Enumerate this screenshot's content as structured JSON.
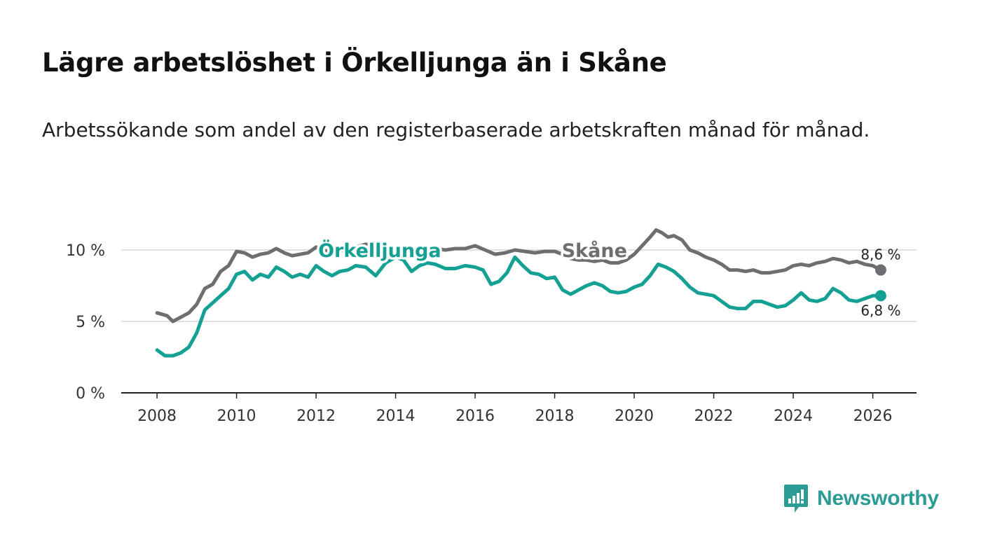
{
  "title": "Lägre arbetslöshet i Örkelljunga än i Skåne",
  "subtitle": "Arbetssökande som andel av den registerbaserade arbetskraften månad för månad.",
  "brand": {
    "name": "Newsworthy",
    "color": "#2b9b96"
  },
  "chart_data": {
    "type": "line",
    "title": "Lägre arbetslöshet i Örkelljunga än i Skåne",
    "subtitle": "Arbetssökande som andel av den registerbaserade arbetskraften månad för månad.",
    "xlabel": "",
    "ylabel": "",
    "xlim": [
      2007.1,
      2027.1
    ],
    "ylim": [
      0,
      10
    ],
    "x_ticks": [
      2008,
      2010,
      2012,
      2014,
      2016,
      2018,
      2020,
      2022,
      2024,
      2026
    ],
    "x_tick_labels": [
      "2008",
      "2010",
      "2012",
      "2014",
      "2016",
      "2018",
      "2020",
      "2022",
      "2024",
      "2026"
    ],
    "y_ticks": [
      0,
      5,
      10
    ],
    "y_tick_labels": [
      "0 %",
      "5 %",
      "10 %"
    ],
    "grid": "horizontal",
    "series": [
      {
        "name": "Skåne",
        "color": "#6e6d72",
        "end_label": "8,6 %",
        "x": [
          2008.0,
          2008.25,
          2008.4,
          2008.6,
          2008.8,
          2009.0,
          2009.2,
          2009.4,
          2009.6,
          2009.8,
          2010.0,
          2010.2,
          2010.4,
          2010.6,
          2010.8,
          2011.0,
          2011.2,
          2011.4,
          2011.6,
          2011.8,
          2012.0,
          2012.2,
          2012.4,
          2012.6,
          2012.8,
          2013.0,
          2013.25,
          2013.5,
          2013.75,
          2014.0,
          2014.25,
          2014.5,
          2014.75,
          2015.0,
          2015.25,
          2015.5,
          2015.75,
          2016.0,
          2016.25,
          2016.5,
          2016.75,
          2017.0,
          2017.25,
          2017.5,
          2017.75,
          2018.0,
          2018.2,
          2018.4,
          2018.6,
          2018.8,
          2019.0,
          2019.2,
          2019.4,
          2019.6,
          2019.8,
          2020.0,
          2020.2,
          2020.4,
          2020.55,
          2020.7,
          2020.85,
          2021.0,
          2021.2,
          2021.4,
          2021.6,
          2021.8,
          2022.0,
          2022.2,
          2022.4,
          2022.6,
          2022.8,
          2023.0,
          2023.2,
          2023.4,
          2023.6,
          2023.8,
          2024.0,
          2024.2,
          2024.4,
          2024.6,
          2024.8,
          2025.0,
          2025.2,
          2025.4,
          2025.6,
          2025.8,
          2026.0,
          2026.2
        ],
        "values": [
          5.6,
          5.4,
          5.0,
          5.3,
          5.6,
          6.2,
          7.3,
          7.6,
          8.5,
          8.9,
          9.9,
          9.8,
          9.5,
          9.7,
          9.8,
          10.1,
          9.8,
          9.6,
          9.7,
          9.8,
          10.2,
          10.0,
          9.8,
          10.0,
          9.9,
          10.2,
          10.4,
          10.3,
          10.2,
          10.1,
          10.0,
          9.9,
          10.0,
          10.1,
          10.0,
          10.1,
          10.1,
          10.3,
          10.0,
          9.7,
          9.8,
          10.0,
          9.9,
          9.8,
          9.9,
          9.9,
          9.7,
          9.4,
          9.3,
          9.3,
          9.2,
          9.3,
          9.1,
          9.1,
          9.3,
          9.7,
          10.3,
          10.9,
          11.4,
          11.2,
          10.9,
          11.0,
          10.7,
          10.0,
          9.8,
          9.5,
          9.3,
          9.0,
          8.6,
          8.6,
          8.5,
          8.6,
          8.4,
          8.4,
          8.5,
          8.6,
          8.9,
          9.0,
          8.9,
          9.1,
          9.2,
          9.4,
          9.3,
          9.1,
          9.2,
          9.0,
          8.9,
          8.6
        ]
      },
      {
        "name": "Örkelljunga",
        "color": "#14a093",
        "end_label": "6,8 %",
        "x": [
          2008.0,
          2008.2,
          2008.4,
          2008.6,
          2008.8,
          2009.0,
          2009.2,
          2009.4,
          2009.6,
          2009.8,
          2010.0,
          2010.2,
          2010.4,
          2010.6,
          2010.8,
          2011.0,
          2011.2,
          2011.4,
          2011.6,
          2011.8,
          2012.0,
          2012.2,
          2012.4,
          2012.6,
          2012.8,
          2013.0,
          2013.25,
          2013.5,
          2013.75,
          2014.0,
          2014.2,
          2014.4,
          2014.6,
          2014.8,
          2015.0,
          2015.25,
          2015.5,
          2015.75,
          2016.0,
          2016.2,
          2016.4,
          2016.6,
          2016.8,
          2017.0,
          2017.2,
          2017.4,
          2017.6,
          2017.8,
          2018.0,
          2018.2,
          2018.4,
          2018.6,
          2018.8,
          2019.0,
          2019.2,
          2019.4,
          2019.6,
          2019.8,
          2020.0,
          2020.2,
          2020.4,
          2020.6,
          2020.8,
          2021.0,
          2021.2,
          2021.4,
          2021.6,
          2021.8,
          2022.0,
          2022.2,
          2022.4,
          2022.6,
          2022.8,
          2023.0,
          2023.2,
          2023.4,
          2023.6,
          2023.8,
          2024.0,
          2024.2,
          2024.4,
          2024.6,
          2024.8,
          2025.0,
          2025.2,
          2025.4,
          2025.6,
          2025.8,
          2026.0,
          2026.2
        ],
        "values": [
          3.0,
          2.6,
          2.6,
          2.8,
          3.2,
          4.2,
          5.8,
          6.3,
          6.8,
          7.3,
          8.3,
          8.5,
          7.9,
          8.3,
          8.1,
          8.8,
          8.5,
          8.1,
          8.3,
          8.1,
          8.9,
          8.5,
          8.2,
          8.5,
          8.6,
          8.9,
          8.8,
          8.2,
          9.1,
          9.5,
          9.3,
          8.5,
          8.9,
          9.1,
          9.0,
          8.7,
          8.7,
          8.9,
          8.8,
          8.6,
          7.6,
          7.8,
          8.4,
          9.5,
          8.9,
          8.4,
          8.3,
          8.0,
          8.1,
          7.2,
          6.9,
          7.2,
          7.5,
          7.7,
          7.5,
          7.1,
          7.0,
          7.1,
          7.4,
          7.6,
          8.2,
          9.0,
          8.8,
          8.5,
          8.0,
          7.4,
          7.0,
          6.9,
          6.8,
          6.4,
          6.0,
          5.9,
          5.9,
          6.4,
          6.4,
          6.2,
          6.0,
          6.1,
          6.5,
          7.0,
          6.5,
          6.4,
          6.6,
          7.3,
          7.0,
          6.5,
          6.4,
          6.6,
          6.8,
          6.8
        ]
      }
    ]
  }
}
